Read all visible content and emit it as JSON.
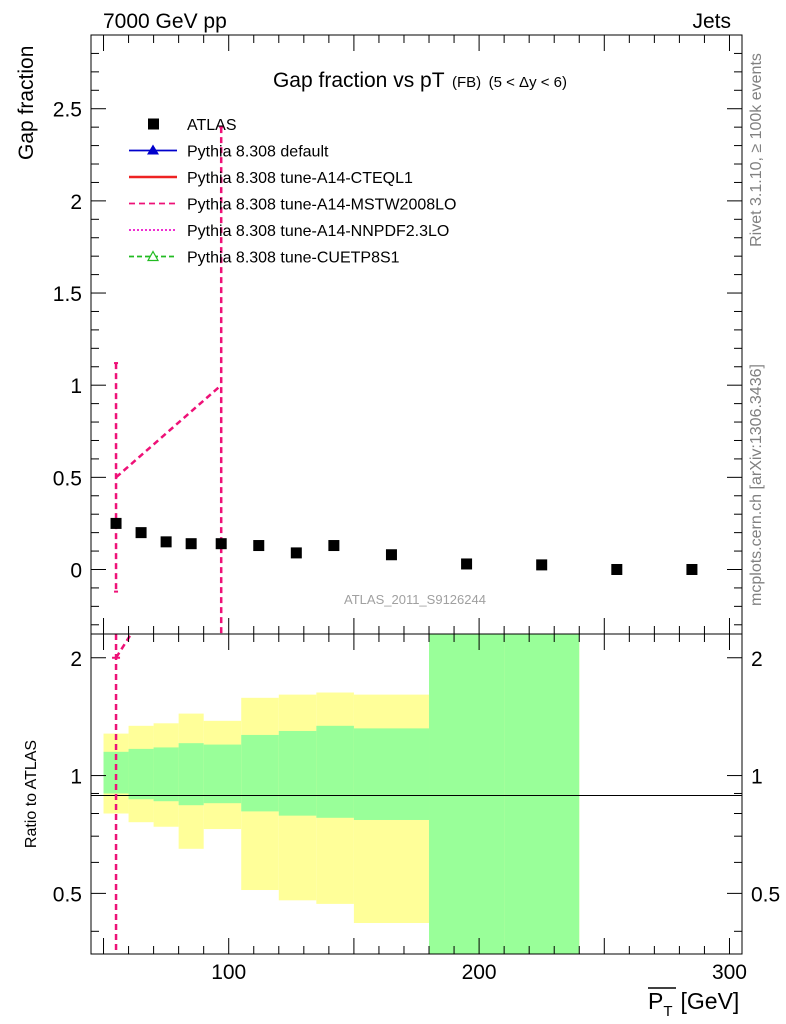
{
  "header": {
    "left": "7000 GeV pp",
    "right": "Jets"
  },
  "side_labels": {
    "rivet": "Rivet 3.1.10, ≥ 100k events",
    "mcplots": "mcplots.cern.ch [arXiv:1306.3436]"
  },
  "chart_data": {
    "type": "scatter",
    "title": "Gap fraction vs pT",
    "title_suffix": "(FB)",
    "title_range": "(5 < Δy < 6)",
    "analysis_id": "ATLAS_2011_S9126244",
    "ylabel": "Gap fraction",
    "xlabel_main": "P",
    "xlabel_sub": "T",
    "xlabel_unit": "[GeV]",
    "ratio_ylabel": "Ratio to ATLAS",
    "xlim": [
      45,
      305
    ],
    "ylim": [
      -0.35,
      2.9
    ],
    "ratio_ylim": [
      0.35,
      2.3
    ],
    "x_ticks": [
      100,
      200,
      300
    ],
    "x_tick_labels": [
      "100",
      "200",
      "300"
    ],
    "y_ticks": [
      0,
      0.5,
      1,
      1.5,
      2,
      2.5
    ],
    "y_tick_labels": [
      "0",
      "0.5",
      "1",
      "1.5",
      "2",
      "2.5"
    ],
    "ratio_ticks": [
      0.5,
      1,
      2
    ],
    "ratio_tick_labels": [
      "0.5",
      "1",
      "2"
    ],
    "legend": [
      {
        "label": "ATLAS",
        "style": "marker-square",
        "color": "#000000"
      },
      {
        "label": "Pythia 8.308 default",
        "style": "line-triangle",
        "color": "#0000cc"
      },
      {
        "label": "Pythia 8.308 tune-A14-CTEQL1",
        "style": "line-solid",
        "color": "#ee2222"
      },
      {
        "label": "Pythia 8.308 tune-A14-MSTW2008LO",
        "style": "line-dashed",
        "color": "#ee1177"
      },
      {
        "label": "Pythia 8.308 tune-A14-NNPDF2.3LO",
        "style": "line-dotted",
        "color": "#ee11cc"
      },
      {
        "label": "Pythia 8.308 tune-CUETP8S1",
        "style": "line-dashed-triangle",
        "color": "#22bb22"
      }
    ],
    "atlas": {
      "bins": [
        [
          50,
          60
        ],
        [
          60,
          70
        ],
        [
          70,
          80
        ],
        [
          80,
          90
        ],
        [
          90,
          105
        ],
        [
          105,
          120
        ],
        [
          120,
          135
        ],
        [
          135,
          150
        ],
        [
          150,
          180
        ],
        [
          180,
          210
        ],
        [
          210,
          240
        ],
        [
          240,
          270
        ],
        [
          270,
          300
        ]
      ],
      "x": [
        55,
        65,
        75,
        85,
        97,
        112,
        127,
        142,
        165,
        195,
        225,
        255,
        285
      ],
      "y": [
        0.25,
        0.2,
        0.15,
        0.14,
        0.14,
        0.13,
        0.09,
        0.13,
        0.08,
        0.03,
        0.025,
        0.0,
        0.0
      ]
    },
    "mstw": {
      "x": [
        55,
        97
      ],
      "y": [
        0.5,
        1.0
      ],
      "err_lo": [
        -0.12,
        -0.4
      ],
      "err_hi": [
        1.12,
        2.4
      ]
    },
    "ratio": {
      "bins": [
        [
          50,
          55
        ],
        [
          55,
          60
        ],
        [
          60,
          70
        ],
        [
          70,
          80
        ],
        [
          80,
          90
        ],
        [
          90,
          105
        ],
        [
          105,
          120
        ],
        [
          120,
          135
        ],
        [
          135,
          150
        ],
        [
          150,
          180
        ],
        [
          180,
          210
        ],
        [
          210,
          240
        ]
      ],
      "green_lo": [
        0.9,
        0.9,
        0.87,
        0.86,
        0.84,
        0.85,
        0.81,
        0.79,
        0.78,
        0.77,
        0.0,
        0.0
      ],
      "green_hi": [
        1.15,
        1.15,
        1.17,
        1.18,
        1.21,
        1.2,
        1.27,
        1.3,
        1.34,
        1.32,
        3.0,
        3.0
      ],
      "yellow_lo": [
        0.8,
        0.8,
        0.76,
        0.74,
        0.65,
        0.73,
        0.51,
        0.48,
        0.47,
        0.42,
        0.0,
        0.0
      ],
      "yellow_hi": [
        1.28,
        1.28,
        1.34,
        1.36,
        1.44,
        1.38,
        1.58,
        1.61,
        1.63,
        1.61,
        3.0,
        3.0
      ],
      "mstw_x": [
        55,
        61
      ],
      "mstw_y": [
        2.0,
        2.3
      ]
    },
    "colors": {
      "green_band": "#99ff99",
      "yellow_band": "#ffff99",
      "mstw": "#ee1177",
      "atlas": "#000000"
    }
  }
}
